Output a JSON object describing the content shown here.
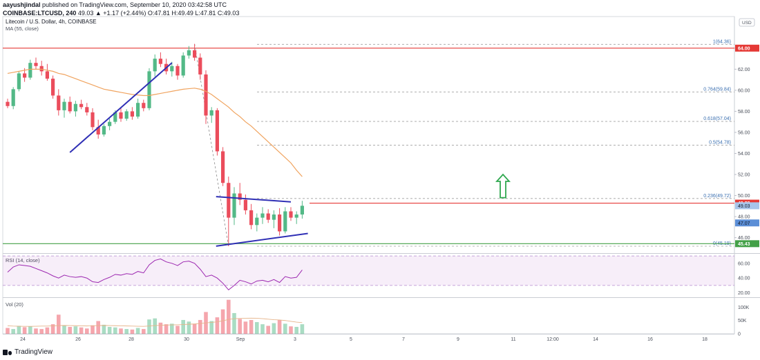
{
  "header": {
    "user": "aayushjindal",
    "published_text": "published on TradingView.com, September 10, 2020 03:42:58 UTC",
    "symbol_line": "COINBASE:LTCUSD, 240",
    "price_line": "49.03 ▲ +1.17 (+2.44%) O:47.81 H:49.49 L:47.81 C:49.03",
    "title": "Litecoin / U.S. Dollar, 4h, COINBASE",
    "indicator": "MA (55, close)"
  },
  "brand": "TradingView",
  "currency": "USD",
  "colors": {
    "up": "#53b987",
    "down": "#eb4d5c",
    "ma": "#f0a35e",
    "trend": "#2f2fb5",
    "hline_red": "#e53935",
    "hline_green": "#43a047",
    "rsi": "#9c27b0",
    "fib": "#a0a0a0",
    "arrow": "#2fa84f"
  },
  "chart_data": [
    {
      "type": "candlestick",
      "title": "Litecoin / U.S. Dollar, 4h, COINBASE",
      "ylim": [
        44.6,
        67.0
      ],
      "price_ticks": [
        46,
        48,
        50,
        52,
        54,
        56,
        58,
        60,
        62,
        64
      ],
      "x_tick_labels": [
        "24",
        "26",
        "28",
        "30",
        "Sep",
        "3",
        "5",
        "7",
        "9",
        "11",
        "12:00",
        "14",
        "16",
        "18"
      ],
      "fibonacci": [
        {
          "label": "1(64.36)",
          "price": 64.36
        },
        {
          "label": "0.764(59.84)",
          "price": 59.84
        },
        {
          "label": "0.618(57.04)",
          "price": 57.04
        },
        {
          "label": "0.5(54.78)",
          "price": 54.78
        },
        {
          "label": "0.236(49.72)",
          "price": 49.72
        },
        {
          "label": "0(45.19)",
          "price": 45.19
        }
      ],
      "horizontal_lines": [
        {
          "label": "64.00",
          "price": 64.0,
          "color": "red"
        },
        {
          "label": "49.28",
          "price": 49.28,
          "color": "red"
        },
        {
          "label": "45.43",
          "price": 45.43,
          "color": "green"
        }
      ],
      "price_tags": [
        {
          "label": "49.03",
          "price": 49.03
        },
        {
          "label": "47.07",
          "price": 47.4
        }
      ],
      "trendlines": [
        {
          "from": [
            11.0,
            54.1
          ],
          "to": [
            29.0,
            62.6
          ]
        },
        {
          "from": [
            36.8,
            49.9
          ],
          "to": [
            50.0,
            49.4
          ]
        },
        {
          "from": [
            36.8,
            45.2
          ],
          "to": [
            53.0,
            46.4
          ]
        }
      ],
      "candles": [
        {
          "o": 58.9,
          "h": 59.2,
          "l": 58.3,
          "c": 58.5
        },
        {
          "o": 58.5,
          "h": 60.3,
          "l": 58.2,
          "c": 60.1
        },
        {
          "o": 60.1,
          "h": 61.8,
          "l": 59.9,
          "c": 61.6
        },
        {
          "o": 61.6,
          "h": 62.1,
          "l": 60.8,
          "c": 61.2
        },
        {
          "o": 61.2,
          "h": 62.9,
          "l": 61.0,
          "c": 62.6
        },
        {
          "o": 62.6,
          "h": 63.1,
          "l": 62.0,
          "c": 62.3
        },
        {
          "o": 62.3,
          "h": 62.8,
          "l": 61.4,
          "c": 61.8
        },
        {
          "o": 61.8,
          "h": 62.5,
          "l": 60.9,
          "c": 61.1
        },
        {
          "o": 61.1,
          "h": 61.4,
          "l": 59.2,
          "c": 59.5
        },
        {
          "o": 59.5,
          "h": 60.1,
          "l": 57.6,
          "c": 58.1
        },
        {
          "o": 58.1,
          "h": 59.2,
          "l": 57.4,
          "c": 58.9
        },
        {
          "o": 58.9,
          "h": 59.4,
          "l": 57.8,
          "c": 58.0
        },
        {
          "o": 58.0,
          "h": 59.0,
          "l": 57.5,
          "c": 58.7
        },
        {
          "o": 58.7,
          "h": 59.1,
          "l": 58.2,
          "c": 58.4
        },
        {
          "o": 58.4,
          "h": 58.8,
          "l": 57.6,
          "c": 57.9
        },
        {
          "o": 57.9,
          "h": 58.3,
          "l": 56.2,
          "c": 56.5
        },
        {
          "o": 56.5,
          "h": 57.2,
          "l": 55.4,
          "c": 55.8
        },
        {
          "o": 55.8,
          "h": 56.8,
          "l": 55.6,
          "c": 56.6
        },
        {
          "o": 56.6,
          "h": 57.3,
          "l": 56.2,
          "c": 57.0
        },
        {
          "o": 57.0,
          "h": 58.1,
          "l": 56.8,
          "c": 57.9
        },
        {
          "o": 57.9,
          "h": 58.4,
          "l": 57.0,
          "c": 57.3
        },
        {
          "o": 57.3,
          "h": 58.2,
          "l": 57.1,
          "c": 58.0
        },
        {
          "o": 58.0,
          "h": 58.4,
          "l": 57.2,
          "c": 57.5
        },
        {
          "o": 57.5,
          "h": 59.2,
          "l": 57.3,
          "c": 58.8
        },
        {
          "o": 58.8,
          "h": 59.1,
          "l": 58.0,
          "c": 58.3
        },
        {
          "o": 58.3,
          "h": 62.1,
          "l": 58.1,
          "c": 61.8
        },
        {
          "o": 61.8,
          "h": 63.4,
          "l": 61.3,
          "c": 63.0
        },
        {
          "o": 63.0,
          "h": 63.6,
          "l": 62.2,
          "c": 62.5
        },
        {
          "o": 62.5,
          "h": 63.0,
          "l": 61.5,
          "c": 61.8
        },
        {
          "o": 61.8,
          "h": 62.7,
          "l": 61.3,
          "c": 62.3
        },
        {
          "o": 62.3,
          "h": 62.5,
          "l": 61.0,
          "c": 61.4
        },
        {
          "o": 61.4,
          "h": 63.6,
          "l": 61.2,
          "c": 63.3
        },
        {
          "o": 63.3,
          "h": 64.2,
          "l": 63.0,
          "c": 63.8
        },
        {
          "o": 63.8,
          "h": 64.4,
          "l": 62.8,
          "c": 63.1
        },
        {
          "o": 63.1,
          "h": 63.5,
          "l": 61.0,
          "c": 61.5
        },
        {
          "o": 61.5,
          "h": 61.9,
          "l": 56.8,
          "c": 57.6
        },
        {
          "o": 57.6,
          "h": 58.4,
          "l": 56.9,
          "c": 58.1
        },
        {
          "o": 58.1,
          "h": 58.3,
          "l": 53.8,
          "c": 54.2
        },
        {
          "o": 54.2,
          "h": 54.6,
          "l": 50.9,
          "c": 51.2
        },
        {
          "o": 51.2,
          "h": 51.8,
          "l": 45.19,
          "c": 47.9
        },
        {
          "o": 47.9,
          "h": 50.8,
          "l": 47.2,
          "c": 50.2
        },
        {
          "o": 50.2,
          "h": 51.2,
          "l": 49.1,
          "c": 49.6
        },
        {
          "o": 49.6,
          "h": 50.1,
          "l": 48.2,
          "c": 48.6
        },
        {
          "o": 48.6,
          "h": 49.2,
          "l": 46.8,
          "c": 47.2
        },
        {
          "o": 47.2,
          "h": 48.3,
          "l": 46.6,
          "c": 47.9
        },
        {
          "o": 47.9,
          "h": 48.9,
          "l": 47.3,
          "c": 48.3
        },
        {
          "o": 48.3,
          "h": 48.7,
          "l": 47.4,
          "c": 47.7
        },
        {
          "o": 47.7,
          "h": 48.6,
          "l": 46.9,
          "c": 48.2
        },
        {
          "o": 48.2,
          "h": 48.8,
          "l": 46.2,
          "c": 46.6
        },
        {
          "o": 46.6,
          "h": 48.9,
          "l": 46.4,
          "c": 48.5
        },
        {
          "o": 48.5,
          "h": 48.9,
          "l": 47.6,
          "c": 47.9
        },
        {
          "o": 47.9,
          "h": 48.5,
          "l": 47.3,
          "c": 48.2
        },
        {
          "o": 48.2,
          "h": 49.5,
          "l": 47.81,
          "c": 49.03
        }
      ],
      "ma_55": [
        61.6,
        61.7,
        61.8,
        61.9,
        62.0,
        62.0,
        62.0,
        61.9,
        61.8,
        61.6,
        61.5,
        61.3,
        61.1,
        60.9,
        60.7,
        60.5,
        60.3,
        60.1,
        60.0,
        59.9,
        59.8,
        59.7,
        59.6,
        59.55,
        59.5,
        59.5,
        59.6,
        59.7,
        59.8,
        59.9,
        60.0,
        60.1,
        60.15,
        60.2,
        60.1,
        59.9,
        59.6,
        59.2,
        58.8,
        58.4,
        57.9,
        57.5,
        57.0,
        56.6,
        56.1,
        55.6,
        55.1,
        54.6,
        54.1,
        53.6,
        53.1,
        52.4,
        51.8
      ]
    },
    {
      "type": "line",
      "title": "RSI (14, close)",
      "ylim": [
        14,
        72
      ],
      "ticks": [
        20,
        40,
        60
      ],
      "band": [
        30,
        70
      ],
      "values": [
        48,
        55,
        58,
        57,
        56,
        53,
        50,
        47,
        43,
        40,
        44,
        42,
        41,
        42,
        40,
        35,
        34,
        38,
        41,
        45,
        44,
        46,
        45,
        49,
        47,
        58,
        64,
        66,
        62,
        60,
        57,
        62,
        63,
        60,
        52,
        42,
        44,
        40,
        33,
        24,
        30,
        37,
        35,
        32,
        36,
        37,
        35,
        38,
        34,
        42,
        40,
        41,
        51
      ]
    },
    {
      "type": "bar",
      "title": "Vol (20)",
      "ylim": [
        0,
        135000
      ],
      "ticks": [
        "0",
        "50K",
        "100K"
      ],
      "tick_values": [
        0,
        50000,
        100000
      ],
      "values": [
        22000,
        18000,
        30000,
        25000,
        28000,
        20000,
        18000,
        24000,
        36000,
        72000,
        30000,
        26000,
        28000,
        24000,
        20000,
        32000,
        48000,
        34000,
        26000,
        24000,
        20000,
        18000,
        16000,
        22000,
        18000,
        54000,
        58000,
        42000,
        36000,
        38000,
        30000,
        52000,
        46000,
        38000,
        52000,
        82000,
        48000,
        62000,
        92000,
        128000,
        78000,
        56000,
        46000,
        52000,
        44000,
        36000,
        30000,
        40000,
        52000,
        38000,
        28000,
        26000,
        36000
      ],
      "ma": [
        30000,
        29000,
        28500,
        28000,
        28000,
        28500,
        29000,
        29000,
        30000,
        31000,
        31500,
        31000,
        30500,
        30000,
        29500,
        30000,
        31000,
        31500,
        31000,
        30500,
        30000,
        29500,
        29000,
        28500,
        28000,
        29500,
        31000,
        32000,
        33000,
        33500,
        34000,
        35000,
        36000,
        37000,
        38500,
        41000,
        43000,
        45000,
        49000,
        54000,
        57000,
        58000,
        58500,
        59000,
        58500,
        57000,
        55000,
        53000,
        52000,
        50000,
        47000,
        44000,
        42000
      ]
    }
  ]
}
